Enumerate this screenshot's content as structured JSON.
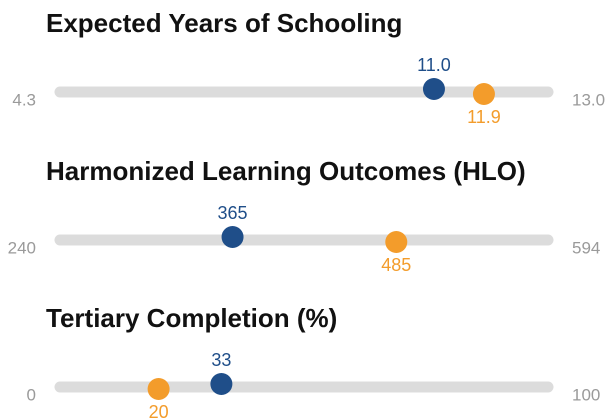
{
  "chart_data": [
    {
      "type": "dot",
      "title": "Expected Years of Schooling",
      "xlim": [
        4.3,
        13
      ],
      "xticks": [
        4.3,
        {
          "value": 13,
          "label": "13.0"
        }
      ],
      "series": [
        {
          "color": "#1f4e89",
          "values": [
            11
          ],
          "value_labels": [
            "11.0"
          ]
        },
        {
          "color": "#f39c2b",
          "values": [
            11.9
          ]
        }
      ]
    },
    {
      "type": "dot",
      "title": "Harmonized Learning Outcomes (HLO)",
      "xlim": [
        240,
        594
      ],
      "xticks": [
        240,
        594
      ],
      "series": [
        {
          "color": "#1f4e89",
          "values": [
            365
          ]
        },
        {
          "color": "#f39c2b",
          "values": [
            485
          ]
        }
      ]
    },
    {
      "type": "dot",
      "title": "Tertiary Completion (%)",
      "xlim": [
        0,
        100
      ],
      "xticks": [
        0,
        100
      ],
      "series": [
        {
          "color": "#1f4e89",
          "values": [
            33
          ]
        },
        {
          "color": "#f39c2b",
          "values": [
            20
          ]
        }
      ]
    }
  ]
}
